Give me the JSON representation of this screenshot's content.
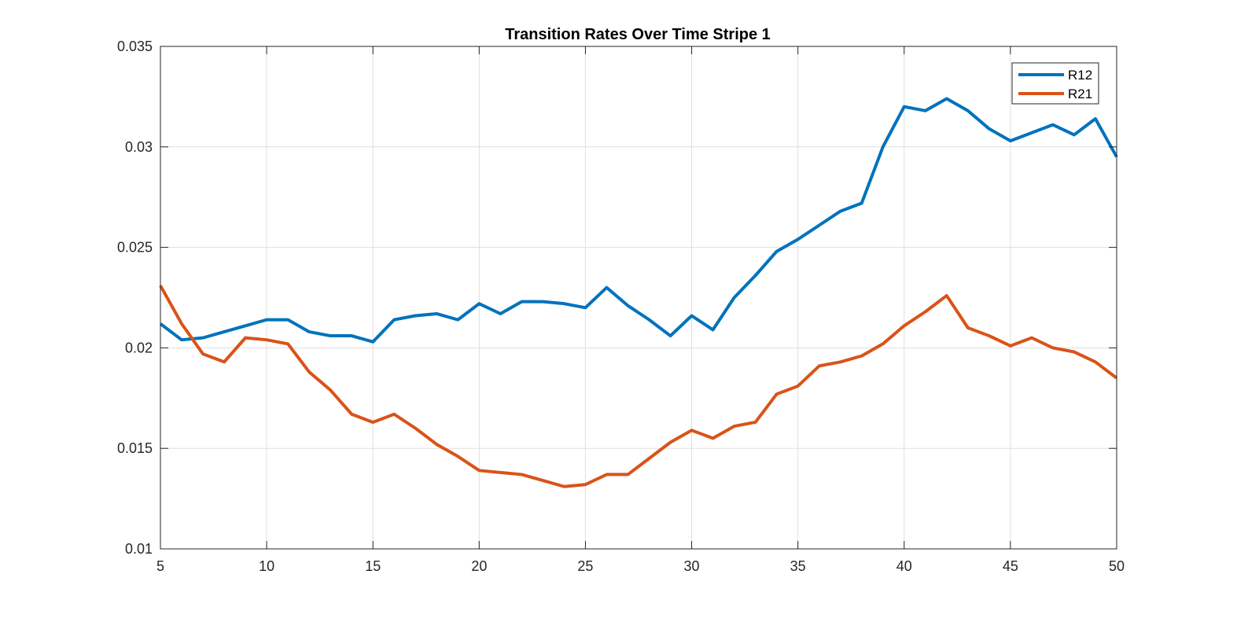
{
  "chart_data": {
    "type": "line",
    "title": "Transition Rates Over Time Stripe 1",
    "xlabel": "",
    "ylabel": "",
    "xlim": [
      5,
      50
    ],
    "ylim": [
      0.01,
      0.035
    ],
    "grid": true,
    "legend_position": "top-right",
    "x_ticks": [
      5,
      10,
      15,
      20,
      25,
      30,
      35,
      40,
      45,
      50
    ],
    "x_tick_labels": [
      "5",
      "10",
      "15",
      "20",
      "25",
      "30",
      "35",
      "40",
      "45",
      "50"
    ],
    "y_ticks": [
      0.01,
      0.015,
      0.02,
      0.025,
      0.03,
      0.035
    ],
    "y_tick_labels": [
      "0.01",
      "0.015",
      "0.02",
      "0.025",
      "0.03",
      "0.035"
    ],
    "x": [
      5,
      6,
      7,
      8,
      9,
      10,
      11,
      12,
      13,
      14,
      15,
      16,
      17,
      18,
      19,
      20,
      21,
      22,
      23,
      24,
      25,
      26,
      27,
      28,
      29,
      30,
      31,
      32,
      33,
      34,
      35,
      36,
      37,
      38,
      39,
      40,
      41,
      42,
      43,
      44,
      45,
      46,
      47,
      48,
      49,
      50
    ],
    "series": [
      {
        "name": "R12",
        "color": "#0072BD",
        "values": [
          0.0212,
          0.0204,
          0.0205,
          0.0208,
          0.0211,
          0.0214,
          0.0214,
          0.0208,
          0.0206,
          0.0206,
          0.0203,
          0.0214,
          0.0216,
          0.0217,
          0.0214,
          0.0222,
          0.0217,
          0.0223,
          0.0223,
          0.0222,
          0.022,
          0.023,
          0.0221,
          0.0214,
          0.0206,
          0.0216,
          0.0209,
          0.0225,
          0.0236,
          0.0248,
          0.0254,
          0.0261,
          0.0268,
          0.0272,
          0.03,
          0.032,
          0.0318,
          0.0324,
          0.0318,
          0.0309,
          0.0303,
          0.0307,
          0.0311,
          0.0306,
          0.0314,
          0.0295
        ]
      },
      {
        "name": "R21",
        "color": "#D95319",
        "values": [
          0.0231,
          0.0212,
          0.0197,
          0.0193,
          0.0205,
          0.0204,
          0.0202,
          0.0188,
          0.0179,
          0.0167,
          0.0163,
          0.0167,
          0.016,
          0.0152,
          0.0146,
          0.0139,
          0.0138,
          0.0137,
          0.0134,
          0.0131,
          0.0132,
          0.0137,
          0.0137,
          0.0145,
          0.0153,
          0.0159,
          0.0155,
          0.0161,
          0.0163,
          0.0177,
          0.0181,
          0.0191,
          0.0193,
          0.0196,
          0.0202,
          0.0211,
          0.0218,
          0.0226,
          0.021,
          0.0206,
          0.0201,
          0.0205,
          0.02,
          0.0198,
          0.0193,
          0.0185
        ]
      }
    ]
  }
}
